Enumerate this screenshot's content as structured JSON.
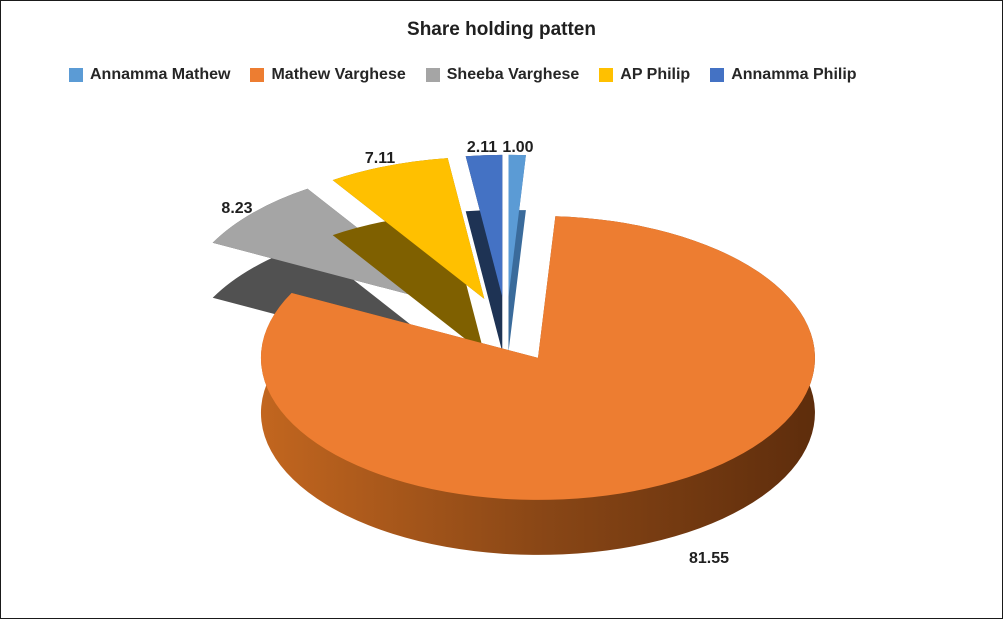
{
  "title": "Share holding patten",
  "chart_data": {
    "type": "pie",
    "style": "3d-exploded",
    "title": "Share holding patten",
    "legend_position": "top",
    "start_angle_deg": 0,
    "direction": "clockwise",
    "labels_shown": [
      "1.00",
      "81.55",
      "8.23",
      "7.11",
      "2.11"
    ],
    "series": [
      {
        "name": "Annamma Mathew",
        "value": 1.0,
        "color": "#5B9BD5",
        "wall": "#3A6B9B"
      },
      {
        "name": "Mathew Varghese",
        "value": 81.55,
        "color": "#ED7D31",
        "wall": "#8A4716",
        "wall_gradient": [
          "#C2661F",
          "#8A4716",
          "#5E2D0C"
        ]
      },
      {
        "name": "Sheeba Varghese",
        "value": 8.23,
        "color": "#A5A5A5",
        "wall": "#515151"
      },
      {
        "name": "AP Philip",
        "value": 7.11,
        "color": "#FFC000",
        "wall": "#7F6000"
      },
      {
        "name": "Annamma Philip",
        "value": 2.11,
        "color": "#4472C4",
        "wall": "#1E3354"
      }
    ]
  }
}
